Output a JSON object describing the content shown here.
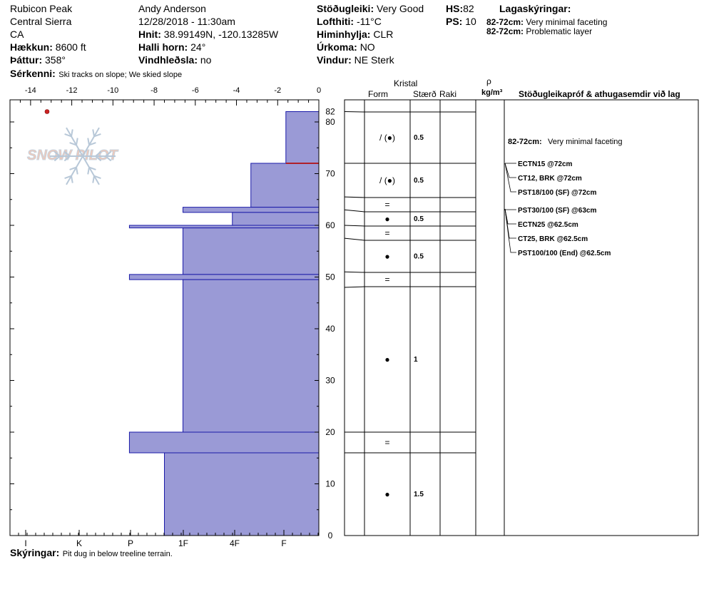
{
  "header": {
    "location": "Rubicon Peak",
    "range": "Central Sierra",
    "state": "CA",
    "elevation": {
      "label": "Hækkun:",
      "value": "8600 ft"
    },
    "aspect": {
      "label": "Þáttur:",
      "value": "358°"
    },
    "observer": "Andy Anderson",
    "datetime": "12/28/2018 - 11:30am",
    "coords": {
      "label": "Hnit:",
      "value": "38.99149N, -120.13285W"
    },
    "slope": {
      "label": "Halli horn:",
      "value": "24°"
    },
    "wind_loading": {
      "label": "Vindhleðsla:",
      "value": "no"
    },
    "stability": {
      "label": "Stöðugleiki:",
      "value": "Very Good"
    },
    "air_temp": {
      "label": "Lofthiti:",
      "value": "-11°C"
    },
    "sky": {
      "label": "Himinhylja:",
      "value": "CLR"
    },
    "precip": {
      "label": "Úrkoma:",
      "value": "NO"
    },
    "wind": {
      "label": "Vindur:",
      "value": "NE Sterk"
    },
    "hs": {
      "label": "HS:",
      "value": "82"
    },
    "ps": {
      "label": "PS:",
      "value": "10"
    },
    "layer_notes_title": "Lagaskýringar:",
    "layer_notes": [
      {
        "range": "82-72cm:",
        "text": "Very minimal faceting"
      },
      {
        "range": "82-72cm:",
        "text": "Problematic layer"
      }
    ],
    "features": {
      "label": "Sérkenni:",
      "value": "Ski tracks on slope; We skied slope"
    }
  },
  "footer": {
    "label": "Skýringar:",
    "value": "Pit dug in below treeline terrain."
  },
  "logo_text": "SNOW PILOT",
  "columns": {
    "kristal": "Kristal",
    "form": "Form",
    "size": "Stærð",
    "moisture": "Raki",
    "rho": "ρ",
    "density_unit": "kg/m³",
    "tests": "Stöðugleikapróf & athugasemdir við lag"
  },
  "chart_data": {
    "type": "bar",
    "xlim": [
      -15,
      0
    ],
    "ylim": [
      0,
      84
    ],
    "temp_ticks": [
      "-14",
      "-12",
      "-10",
      "-8",
      "-6",
      "-4",
      "-2",
      "0"
    ],
    "depth_ticks": [
      "0",
      "10",
      "20",
      "30",
      "40",
      "50",
      "60",
      "70",
      "80"
    ],
    "top_label": "82",
    "hardness_labels": [
      "I",
      "K",
      "P",
      "1F",
      "4F",
      "F"
    ],
    "hardness_profile": [
      {
        "top": 82,
        "bottom": 72,
        "hardness": -1.6
      },
      {
        "top": 72,
        "bottom": 63.5,
        "hardness": -3.3
      },
      {
        "top": 63.5,
        "bottom": 62.5,
        "hardness": -6.6
      },
      {
        "top": 62.5,
        "bottom": 60,
        "hardness": -4.2
      },
      {
        "top": 60,
        "bottom": 59.5,
        "hardness": -9.2
      },
      {
        "top": 59.5,
        "bottom": 50.5,
        "hardness": -6.6
      },
      {
        "top": 50.5,
        "bottom": 49.5,
        "hardness": -9.2
      },
      {
        "top": 49.5,
        "bottom": 20,
        "hardness": -6.6
      },
      {
        "top": 20,
        "bottom": 16,
        "hardness": -9.2
      },
      {
        "top": 16,
        "bottom": 0,
        "hardness": -7.5
      }
    ],
    "temperature_points": [
      {
        "depth": 82,
        "temp": -13.2
      }
    ],
    "problem_layer_depth": 72,
    "layers": [
      {
        "top": 82,
        "bottom": 72,
        "form": "/ (●)",
        "size": "0.5"
      },
      {
        "top": 72,
        "bottom": 65.5,
        "form": "/ (●)",
        "size": "0.5"
      },
      {
        "top": 65.5,
        "bottom": 63,
        "form": "=",
        "size": ""
      },
      {
        "top": 63,
        "bottom": 60,
        "form": "●",
        "size": "0.5"
      },
      {
        "top": 60,
        "bottom": 57.5,
        "form": "=",
        "size": ""
      },
      {
        "top": 57.5,
        "bottom": 51,
        "form": "●",
        "size": "0.5"
      },
      {
        "top": 51,
        "bottom": 48,
        "form": "=",
        "size": ""
      },
      {
        "top": 48,
        "bottom": 20,
        "form": "●",
        "size": "1"
      },
      {
        "top": 20,
        "bottom": 16,
        "form": "=",
        "size": ""
      },
      {
        "top": 16,
        "bottom": 0,
        "form": "●",
        "size": "1.5"
      }
    ],
    "layer_comment": {
      "range": "82-72cm:",
      "text": "Very minimal faceting",
      "depth": 77
    },
    "tests": [
      {
        "text": "ECTN15 @72cm",
        "depth": 72
      },
      {
        "text": "CT12, BRK @72cm",
        "depth": 72
      },
      {
        "text": "PST18/100 (SF) @72cm",
        "depth": 72
      },
      {
        "text": "PST30/100 (SF) @63cm",
        "depth": 63
      },
      {
        "text": "ECTN25 @62.5cm",
        "depth": 62.5
      },
      {
        "text": "CT25, BRK @62.5cm",
        "depth": 62.5
      },
      {
        "text": "PST100/100 (End) @62.5cm",
        "depth": 62.5
      }
    ],
    "colors": {
      "fill": "#9a9ad6",
      "stroke": "#1a1aa8",
      "problem": "#b0202a",
      "temp_point": "#cc2222"
    }
  }
}
